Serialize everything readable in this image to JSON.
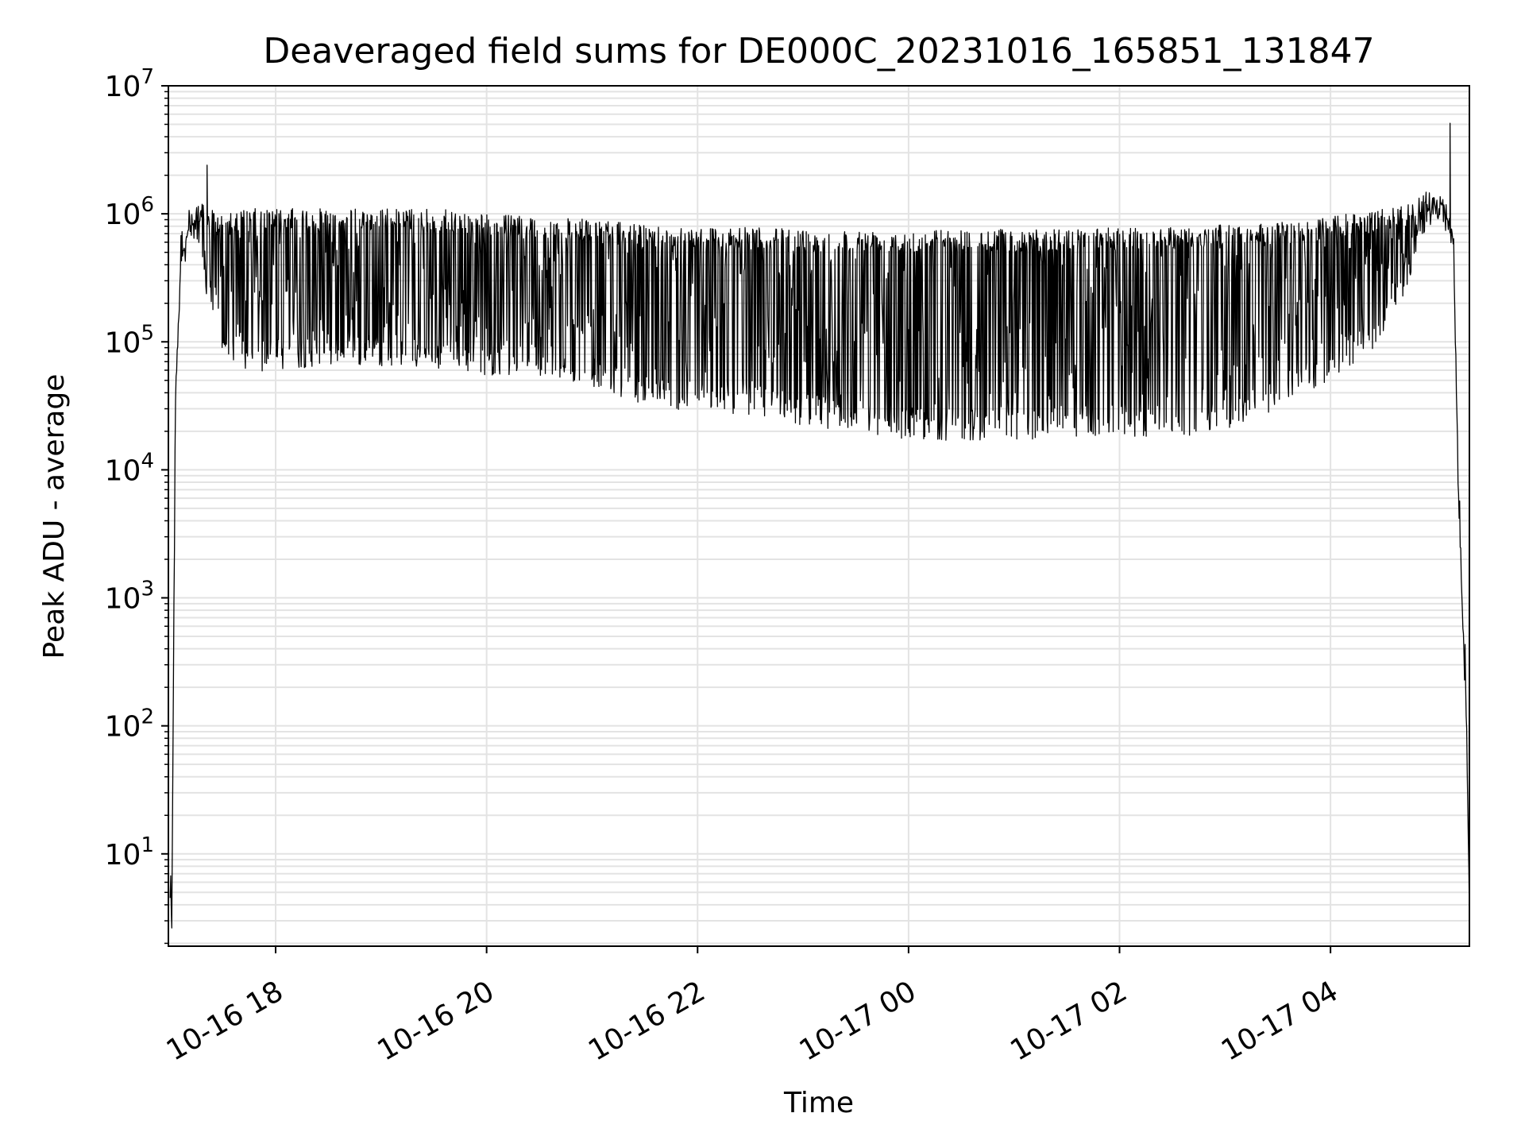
{
  "chart_data": {
    "type": "line",
    "title": "Deaveraged field sums for DE000C_20231016_165851_131847",
    "xlabel": "Time",
    "ylabel": "Peak ADU - average",
    "xscale": "time",
    "yscale": "log",
    "xlim": [
      "10-16 16:59",
      "10-17 05:19"
    ],
    "ylim": [
      1.9,
      10000000
    ],
    "grid": true,
    "line_color": "#000000",
    "grid_color": "#e3e3e3",
    "x_ticks": [
      {
        "t": "10-16 18:00",
        "label": "10-16 18"
      },
      {
        "t": "10-16 20:00",
        "label": "10-16 20"
      },
      {
        "t": "10-16 22:00",
        "label": "10-16 22"
      },
      {
        "t": "10-17 00:00",
        "label": "10-17 00"
      },
      {
        "t": "10-17 02:00",
        "label": "10-17 02"
      },
      {
        "t": "10-17 04:00",
        "label": "10-17 04"
      }
    ],
    "y_ticks": [
      {
        "value": 10,
        "base": "10",
        "exp": "1"
      },
      {
        "value": 100,
        "base": "10",
        "exp": "2"
      },
      {
        "value": 1000,
        "base": "10",
        "exp": "3"
      },
      {
        "value": 10000,
        "base": "10",
        "exp": "4"
      },
      {
        "value": 100000,
        "base": "10",
        "exp": "5"
      },
      {
        "value": 1000000,
        "base": "10",
        "exp": "6"
      },
      {
        "value": 10000000,
        "base": "10",
        "exp": "7"
      }
    ],
    "series": [
      {
        "values": {
          "t": [
            "10-16 17:00",
            "10-16 17:01",
            "10-16 17:03",
            "10-16 17:06",
            "10-16 17:10",
            "10-16 17:15",
            "10-16 17:21",
            "10-16 17:30",
            "10-16 17:45",
            "10-16 18:00",
            "10-16 18:30",
            "10-16 19:00",
            "10-16 19:30",
            "10-16 20:00",
            "10-16 20:30",
            "10-16 21:00",
            "10-16 21:30",
            "10-16 22:00",
            "10-16 22:30",
            "10-16 23:00",
            "10-16 23:30",
            "10-17 00:00",
            "10-17 00:30",
            "10-17 01:00",
            "10-17 01:30",
            "10-17 02:00",
            "10-17 02:30",
            "10-17 03:00",
            "10-17 03:30",
            "10-17 04:00",
            "10-17 04:30",
            "10-17 04:45",
            "10-17 04:55",
            "10-17 05:05",
            "10-17 05:10",
            "10-17 05:13",
            "10-17 05:15",
            "10-17 05:17",
            "10-17 05:19"
          ],
          "upper": [
            3.8,
            3.8,
            40000,
            400000,
            800000,
            1300000,
            1100000,
            1000000,
            1100000,
            1100000,
            1100000,
            1100000,
            1100000,
            1000000,
            950000,
            900000,
            820000,
            800000,
            780000,
            760000,
            750000,
            760000,
            760000,
            760000,
            760000,
            780000,
            800000,
            820000,
            850000,
            950000,
            1100000,
            1200000,
            1500000,
            1200000,
            800000,
            5000,
            800,
            200,
            3.8
          ],
          "lower": [
            3.8,
            3.8,
            40000,
            400000,
            700000,
            450000,
            200000,
            80000,
            55000,
            60000,
            65000,
            65000,
            60000,
            55000,
            55000,
            45000,
            32000,
            28000,
            27000,
            22000,
            20000,
            17000,
            17000,
            17000,
            18000,
            18000,
            18000,
            20000,
            30000,
            50000,
            100000,
            300000,
            800000,
            800000,
            300000,
            5000,
            800,
            200,
            3.8
          ]
        },
        "spikes": [
          {
            "t": "10-16 17:21",
            "value": 2400000
          },
          {
            "t": "10-17 05:08",
            "value": 5100000
          }
        ]
      }
    ]
  }
}
